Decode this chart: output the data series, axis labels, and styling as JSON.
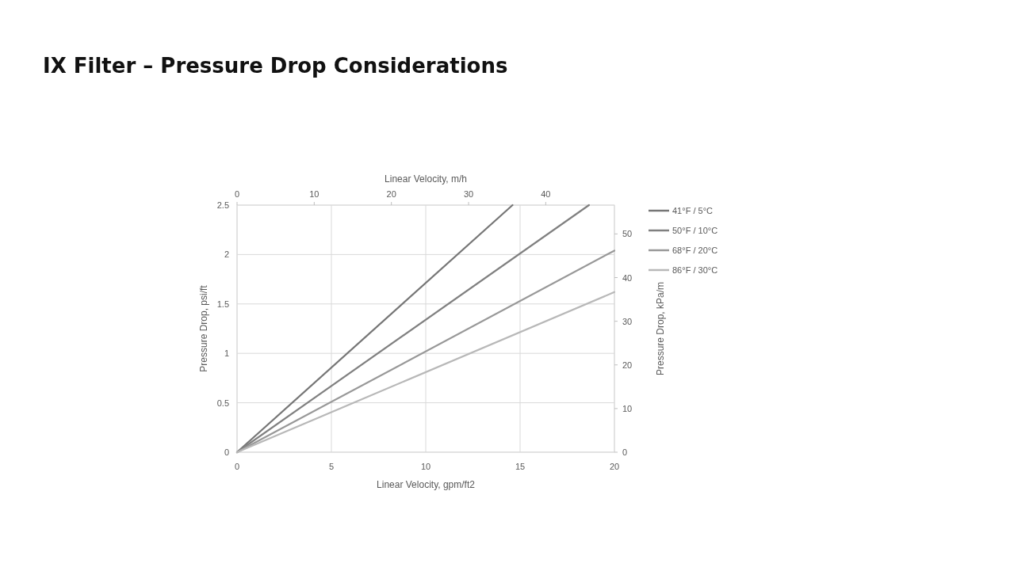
{
  "chart_data": {
    "type": "line",
    "title": "IX Filter – Pressure Drop Considerations",
    "xlabel": "Linear Velocity, gpm/ft2",
    "ylabel": "Pressure Drop, psi/ft",
    "x2label": "Linear Velocity, m/h",
    "y2label": "Pressure Drop, kPa/m",
    "xlim": [
      0,
      20
    ],
    "xticks": [
      0,
      5,
      10,
      15,
      20
    ],
    "ylim": [
      0,
      2.5
    ],
    "yticks": [
      0,
      0.5,
      1,
      1.5,
      2,
      2.5
    ],
    "x2lim": [
      0,
      48.9
    ],
    "x2ticks": [
      0,
      10,
      20,
      30,
      40
    ],
    "y2lim": [
      0,
      56.6
    ],
    "y2ticks": [
      0,
      10,
      20,
      30,
      40,
      50
    ],
    "grid": true,
    "legend": "right",
    "marker": "none",
    "line_style": "solid",
    "series": [
      {
        "name": "41°F / 5°C",
        "color": "#767676",
        "x": [
          0,
          14.6
        ],
        "values": [
          0,
          2.5
        ]
      },
      {
        "name": "50°F / 10°C",
        "color": "#808080",
        "x": [
          0,
          18.65
        ],
        "values": [
          0,
          2.5
        ]
      },
      {
        "name": "68°F / 20°C",
        "color": "#989898",
        "x": [
          0,
          20
        ],
        "values": [
          0,
          2.04
        ]
      },
      {
        "name": "86°F / 30°C",
        "color": "#b8b8b8",
        "x": [
          0,
          20
        ],
        "values": [
          0,
          1.62
        ]
      }
    ]
  }
}
